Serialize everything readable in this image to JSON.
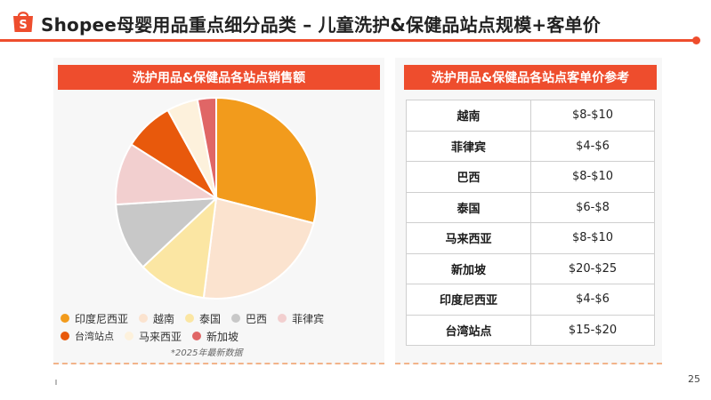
{
  "header": {
    "title": "Shopee母婴用品重点细分品类 – 儿童洗护&保健品站点规模+客单价",
    "brand_color": "#ee4d2d"
  },
  "left_panel": {
    "banner": "洗护用品&保健品各站点销售额",
    "note": "*2025年最新数据"
  },
  "right_panel": {
    "banner": "洗护用品&保健品各站点客单价参考",
    "rows": [
      {
        "site": "越南",
        "aov": "$8-$10"
      },
      {
        "site": "菲律宾",
        "aov": "$4-$6"
      },
      {
        "site": "巴西",
        "aov": "$8-$10"
      },
      {
        "site": "泰国",
        "aov": "$6-$8"
      },
      {
        "site": "马来西亚",
        "aov": "$8-$10"
      },
      {
        "site": "新加坡",
        "aov": "$20-$25"
      },
      {
        "site": "印度尼西亚",
        "aov": "$4-$6"
      },
      {
        "site": "台湾站点",
        "aov": "$15-$20"
      }
    ]
  },
  "chart_data": {
    "type": "pie",
    "title": "洗护用品&保健品各站点销售额",
    "labels": [
      "印度尼西亚",
      "越南",
      "泰国",
      "巴西",
      "菲律宾",
      "台湾站点",
      "马来西亚",
      "新加坡"
    ],
    "values": [
      29,
      23,
      11,
      11,
      10,
      8,
      5,
      3
    ],
    "colors": [
      "#f29b1c",
      "#fbe3cf",
      "#fbe6a3",
      "#c8c8c8",
      "#f2cfcf",
      "#e8590c",
      "#fdf1dc",
      "#e06666"
    ],
    "legend_position": "bottom"
  },
  "page_number": "25"
}
